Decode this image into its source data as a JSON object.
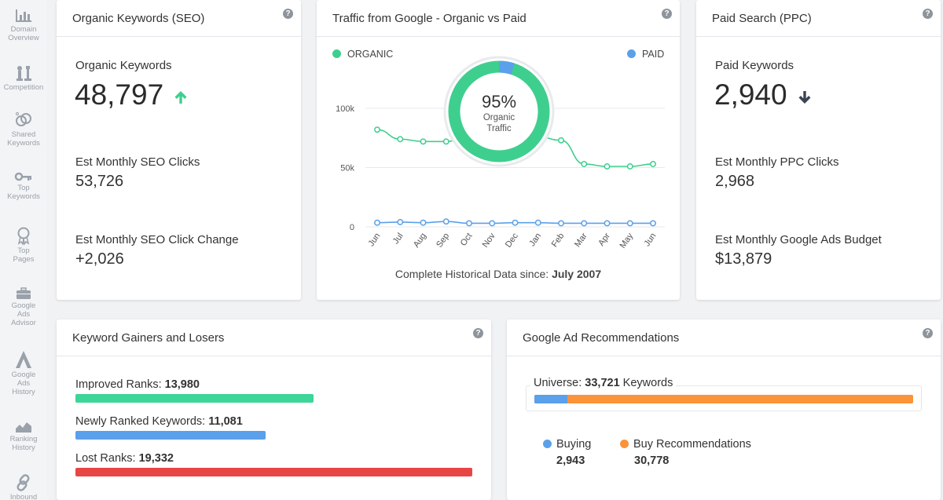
{
  "sidebar": {
    "items": [
      {
        "label": "Domain Overview",
        "l1": "Domain",
        "l2": "Overview",
        "l3": "",
        "icon": "bar-chart-icon"
      },
      {
        "label": "Competition",
        "l1": "Competition",
        "l2": "",
        "l3": "",
        "icon": "chess-pieces-icon"
      },
      {
        "label": "Shared Keywords",
        "l1": "Shared",
        "l2": "Keywords",
        "l3": "",
        "icon": "linked-circles-icon"
      },
      {
        "label": "Top Keywords",
        "l1": "Top",
        "l2": "Keywords",
        "l3": "",
        "icon": "key-icon"
      },
      {
        "label": "Top Pages",
        "l1": "Top",
        "l2": "Pages",
        "l3": "",
        "icon": "award-ribbon-icon"
      },
      {
        "label": "Google Ads Advisor",
        "l1": "Google",
        "l2": "Ads",
        "l3": "Advisor",
        "icon": "briefcase-icon"
      },
      {
        "label": "Google Ads History",
        "l1": "Google",
        "l2": "Ads",
        "l3": "History",
        "icon": "letter-a-icon"
      },
      {
        "label": "Ranking History",
        "l1": "Ranking",
        "l2": "History",
        "l3": "",
        "icon": "area-chart-icon"
      },
      {
        "label": "Inbound",
        "l1": "Inbound",
        "l2": "",
        "l3": "",
        "icon": "link-icon"
      }
    ]
  },
  "seo": {
    "title": "Organic Keywords (SEO)",
    "kw_label": "Organic Keywords",
    "kw_value": "48,797",
    "kw_trend": "up",
    "clicks_label": "Est Monthly SEO Clicks",
    "clicks_value": "53,726",
    "change_label": "Est Monthly SEO Click Change",
    "change_value": "+2,026"
  },
  "traffic": {
    "title": "Traffic from Google - Organic vs Paid",
    "legend_organic": "ORGANIC",
    "legend_paid": "PAID",
    "donut_percent": "95%",
    "donut_label1": "Organic",
    "donut_label2": "Traffic",
    "footer_prefix": "Complete Historical Data since:",
    "footer_date": "July 2007"
  },
  "chart_data": {
    "type": "line",
    "categories": [
      "Jun",
      "Jul",
      "Aug",
      "Sep",
      "Oct",
      "Nov",
      "Dec",
      "Jan",
      "Feb",
      "Mar",
      "Apr",
      "May",
      "Jun"
    ],
    "series": [
      {
        "name": "ORGANIC",
        "color": "#3ecf8e",
        "values": [
          82000,
          74000,
          72000,
          72000,
          76000,
          76000,
          76000,
          76000,
          73000,
          53000,
          51000,
          51000,
          53000
        ]
      },
      {
        "name": "PAID",
        "color": "#5aa0ea",
        "values": [
          3500,
          4000,
          3500,
          4500,
          3000,
          3000,
          3500,
          3500,
          3000,
          3000,
          3000,
          3000,
          3000
        ]
      }
    ],
    "yticks": [
      "100k",
      "50k",
      "0"
    ],
    "ylim": [
      0,
      100000
    ],
    "donut_organic_share": 0.95,
    "grid": true,
    "legend": "top"
  },
  "ppc": {
    "title": "Paid Search (PPC)",
    "kw_label": "Paid Keywords",
    "kw_value": "2,940",
    "kw_trend": "down",
    "clicks_label": "Est Monthly PPC Clicks",
    "clicks_value": "2,968",
    "budget_label": "Est Monthly Google Ads Budget",
    "budget_value": "$13,879"
  },
  "gainers": {
    "title": "Keyword Gainers and Losers",
    "rows": [
      {
        "label": "Improved Ranks:",
        "value": "13,980",
        "color": "#3dd598",
        "share": 0.6
      },
      {
        "label": "Newly Ranked Keywords:",
        "value": "11,081",
        "color": "#5aa0ea",
        "share": 0.48
      },
      {
        "label": "Lost Ranks:",
        "value": "19,332",
        "color": "#e84545",
        "share": 1.0
      }
    ]
  },
  "recommend": {
    "title": "Google Ad Recommendations",
    "universe_label": "Universe:",
    "universe_value": "33,721",
    "universe_suffix": "Keywords",
    "buying_label": "Buying",
    "buying_value": "2,943",
    "buying_color": "#5aa0ea",
    "rec_label": "Buy Recommendations",
    "rec_value": "30,778",
    "rec_color": "#fa9339",
    "buying_share": 0.087
  },
  "colors": {
    "organic": "#3ecf8e",
    "paid": "#5aa0ea",
    "up": "#3ecf8e",
    "down": "#3b4452"
  }
}
